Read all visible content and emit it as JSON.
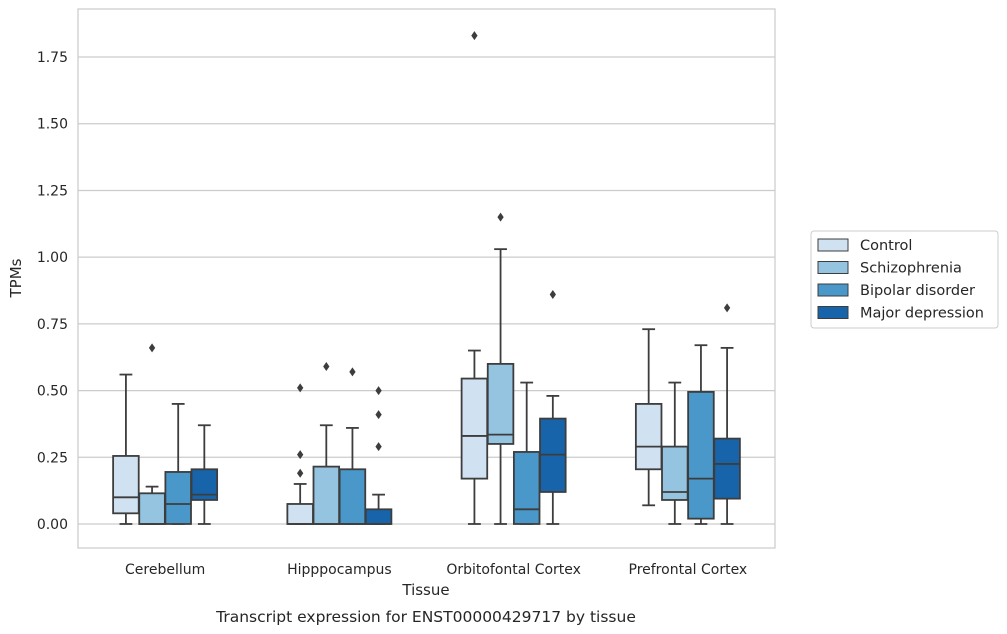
{
  "caption": "Transcript expression for ENST00000429717 by tissue",
  "chart_data": {
    "type": "box",
    "xlabel": "Tissue",
    "ylabel": "TPMs",
    "ylim": [
      -0.09,
      1.93
    ],
    "yticks": [
      "0.00",
      "0.25",
      "0.50",
      "0.75",
      "1.00",
      "1.25",
      "1.50",
      "1.75"
    ],
    "ytick_values": [
      0,
      0.25,
      0.5,
      0.75,
      1.0,
      1.25,
      1.5,
      1.75
    ],
    "grid": "horizontal",
    "legend_position": "right",
    "categories": [
      "Cerebellum",
      "Hipppocampus",
      "Orbitofontal Cortex",
      "Prefrontal Cortex"
    ],
    "series": [
      {
        "name": "Control",
        "color": "#d0e1f2",
        "boxes": [
          {
            "whislo": 0.0,
            "q1": 0.04,
            "med": 0.1,
            "q3": 0.255,
            "whishi": 0.56,
            "fliers": []
          },
          {
            "whislo": 0.0,
            "q1": 0.0,
            "med": 0.0,
            "q3": 0.075,
            "whishi": 0.15,
            "fliers": [
              0.19,
              0.26,
              0.51
            ]
          },
          {
            "whislo": 0.0,
            "q1": 0.17,
            "med": 0.33,
            "q3": 0.545,
            "whishi": 0.65,
            "fliers": [
              1.83
            ]
          },
          {
            "whislo": 0.07,
            "q1": 0.205,
            "med": 0.29,
            "q3": 0.45,
            "whishi": 0.73,
            "fliers": []
          }
        ]
      },
      {
        "name": "Schizophrenia",
        "color": "#94c4df",
        "boxes": [
          {
            "whislo": 0.0,
            "q1": 0.0,
            "med": 0.0,
            "q3": 0.115,
            "whishi": 0.14,
            "fliers": [
              0.66
            ]
          },
          {
            "whislo": 0.0,
            "q1": 0.0,
            "med": 0.0,
            "q3": 0.215,
            "whishi": 0.37,
            "fliers": [
              0.59
            ]
          },
          {
            "whislo": 0.0,
            "q1": 0.3,
            "med": 0.335,
            "q3": 0.6,
            "whishi": 1.03,
            "fliers": [
              1.15
            ]
          },
          {
            "whislo": 0.0,
            "q1": 0.09,
            "med": 0.12,
            "q3": 0.29,
            "whishi": 0.53,
            "fliers": []
          }
        ]
      },
      {
        "name": "Bipolar disorder",
        "color": "#4a98c9",
        "boxes": [
          {
            "whislo": 0.0,
            "q1": 0.0,
            "med": 0.075,
            "q3": 0.195,
            "whishi": 0.45,
            "fliers": []
          },
          {
            "whislo": 0.0,
            "q1": 0.0,
            "med": 0.0,
            "q3": 0.205,
            "whishi": 0.36,
            "fliers": [
              0.57
            ]
          },
          {
            "whislo": 0.0,
            "q1": 0.0,
            "med": 0.055,
            "q3": 0.27,
            "whishi": 0.53,
            "fliers": []
          },
          {
            "whislo": 0.0,
            "q1": 0.02,
            "med": 0.17,
            "q3": 0.495,
            "whishi": 0.67,
            "fliers": []
          }
        ]
      },
      {
        "name": "Major depression",
        "color": "#1764ab",
        "boxes": [
          {
            "whislo": 0.0,
            "q1": 0.09,
            "med": 0.11,
            "q3": 0.205,
            "whishi": 0.37,
            "fliers": []
          },
          {
            "whislo": 0.0,
            "q1": 0.0,
            "med": 0.0,
            "q3": 0.055,
            "whishi": 0.11,
            "fliers": [
              0.29,
              0.41,
              0.5
            ]
          },
          {
            "whislo": 0.0,
            "q1": 0.12,
            "med": 0.26,
            "q3": 0.395,
            "whishi": 0.48,
            "fliers": [
              0.86
            ]
          },
          {
            "whislo": 0.0,
            "q1": 0.095,
            "med": 0.225,
            "q3": 0.32,
            "whishi": 0.66,
            "fliers": [
              0.81
            ]
          }
        ]
      }
    ]
  }
}
